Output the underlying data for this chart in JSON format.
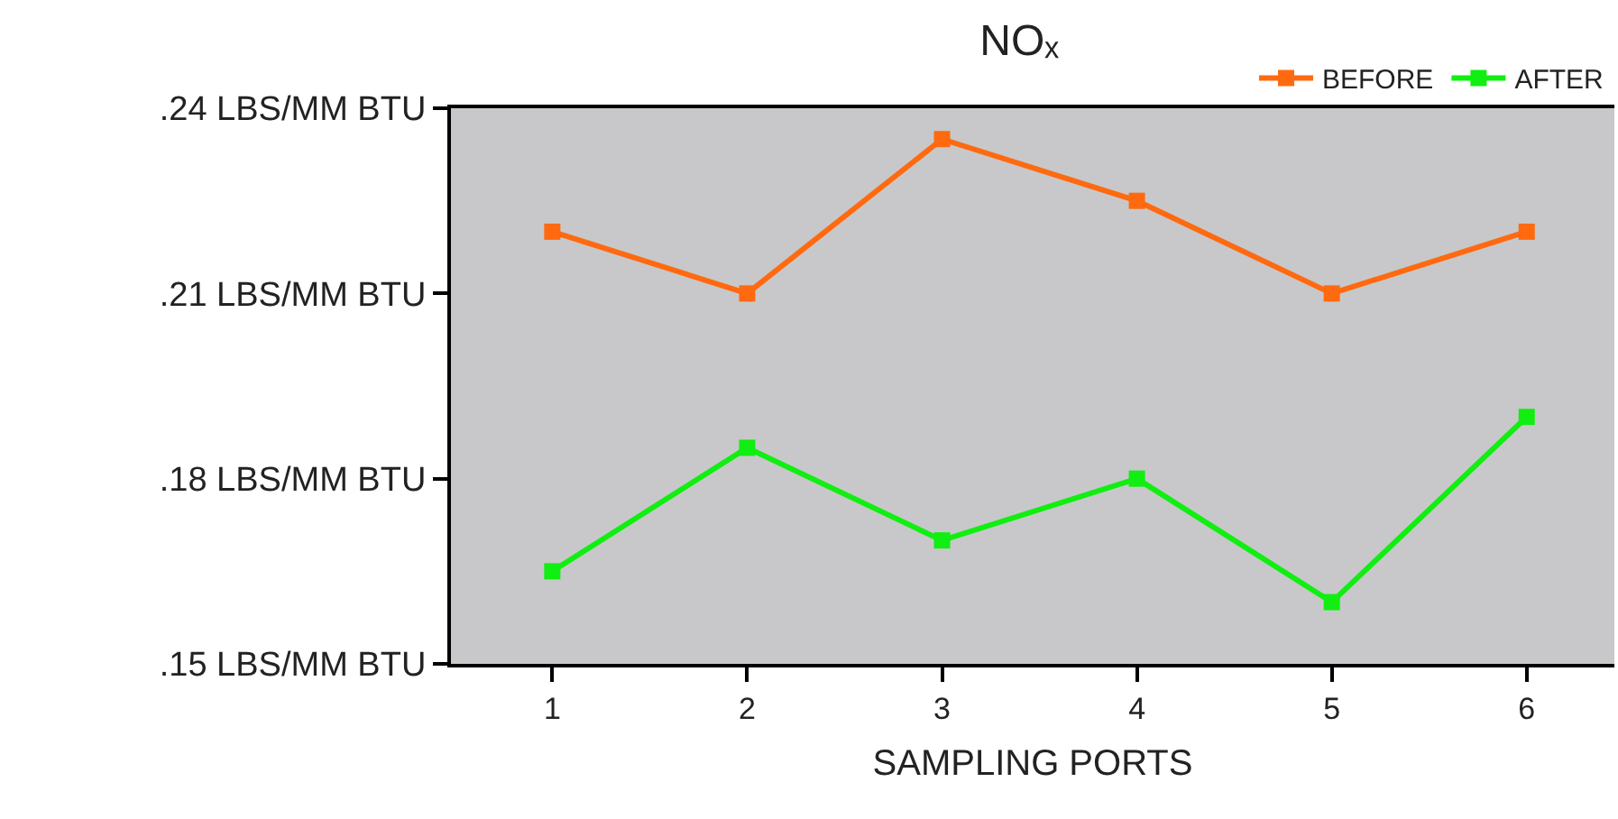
{
  "chart_data": {
    "type": "line",
    "title": "NOₓ",
    "xlabel": "SAMPLING PORTS",
    "x": [
      1,
      2,
      3,
      4,
      5,
      6
    ],
    "series": [
      {
        "name": "BEFORE",
        "color": "#ff6a10",
        "values": [
          0.22,
          0.21,
          0.235,
          0.225,
          0.21,
          0.22
        ]
      },
      {
        "name": "AFTER",
        "color": "#11ee11",
        "values": [
          0.165,
          0.185,
          0.17,
          0.18,
          0.16,
          0.19
        ]
      }
    ],
    "xlim": [
      0.48,
      6.45
    ],
    "xticks": [
      1,
      2,
      3,
      4,
      5,
      6
    ],
    "ylim": [
      0.15,
      0.24
    ],
    "yticks": [
      {
        "value": 0.15,
        "label": ".15 LBS/MM BTU"
      },
      {
        "value": 0.18,
        "label": ".18 LBS/MM BTU"
      },
      {
        "value": 0.21,
        "label": ".21 LBS/MM BTU"
      },
      {
        "value": 0.24,
        "label": ".24 LBS/MM BTU"
      }
    ],
    "grid": false,
    "legend": "top right",
    "marker": "square",
    "line_style": "solid"
  }
}
